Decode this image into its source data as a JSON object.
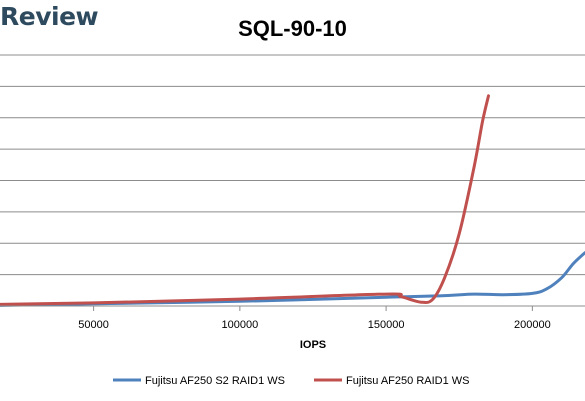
{
  "brand_text": "Review",
  "chart_data": {
    "type": "line",
    "title": "SQL-90-10",
    "xlabel": "IOPS",
    "ylabel": "",
    "x_ticks": [
      50000,
      100000,
      150000,
      200000
    ],
    "x_tick_labels": [
      "50000",
      "100000",
      "150000",
      "200000"
    ],
    "xlim": [
      18000,
      218000
    ],
    "ylim": [
      0,
      8
    ],
    "grid": "horizontal",
    "legend_position": "bottom",
    "series": [
      {
        "name": "Fujitsu AF250 S2 RAID1 WS",
        "color": "#4f81bd",
        "x": [
          18000,
          50000,
          100000,
          150000,
          170000,
          180000,
          190000,
          200000,
          205000,
          210000,
          214000,
          218000
        ],
        "y": [
          0.02,
          0.07,
          0.15,
          0.28,
          0.33,
          0.38,
          0.36,
          0.4,
          0.55,
          0.9,
          1.35,
          1.7
        ]
      },
      {
        "name": "Fujitsu AF250 RAID1 WS",
        "color": "#c0504d",
        "x": [
          18000,
          50000,
          100000,
          150000,
          155000,
          162000,
          166000,
          170000,
          175000,
          180000,
          183000,
          185000
        ],
        "y": [
          0.05,
          0.1,
          0.22,
          0.38,
          0.3,
          0.12,
          0.22,
          0.9,
          2.3,
          4.4,
          5.9,
          6.7
        ]
      }
    ]
  }
}
